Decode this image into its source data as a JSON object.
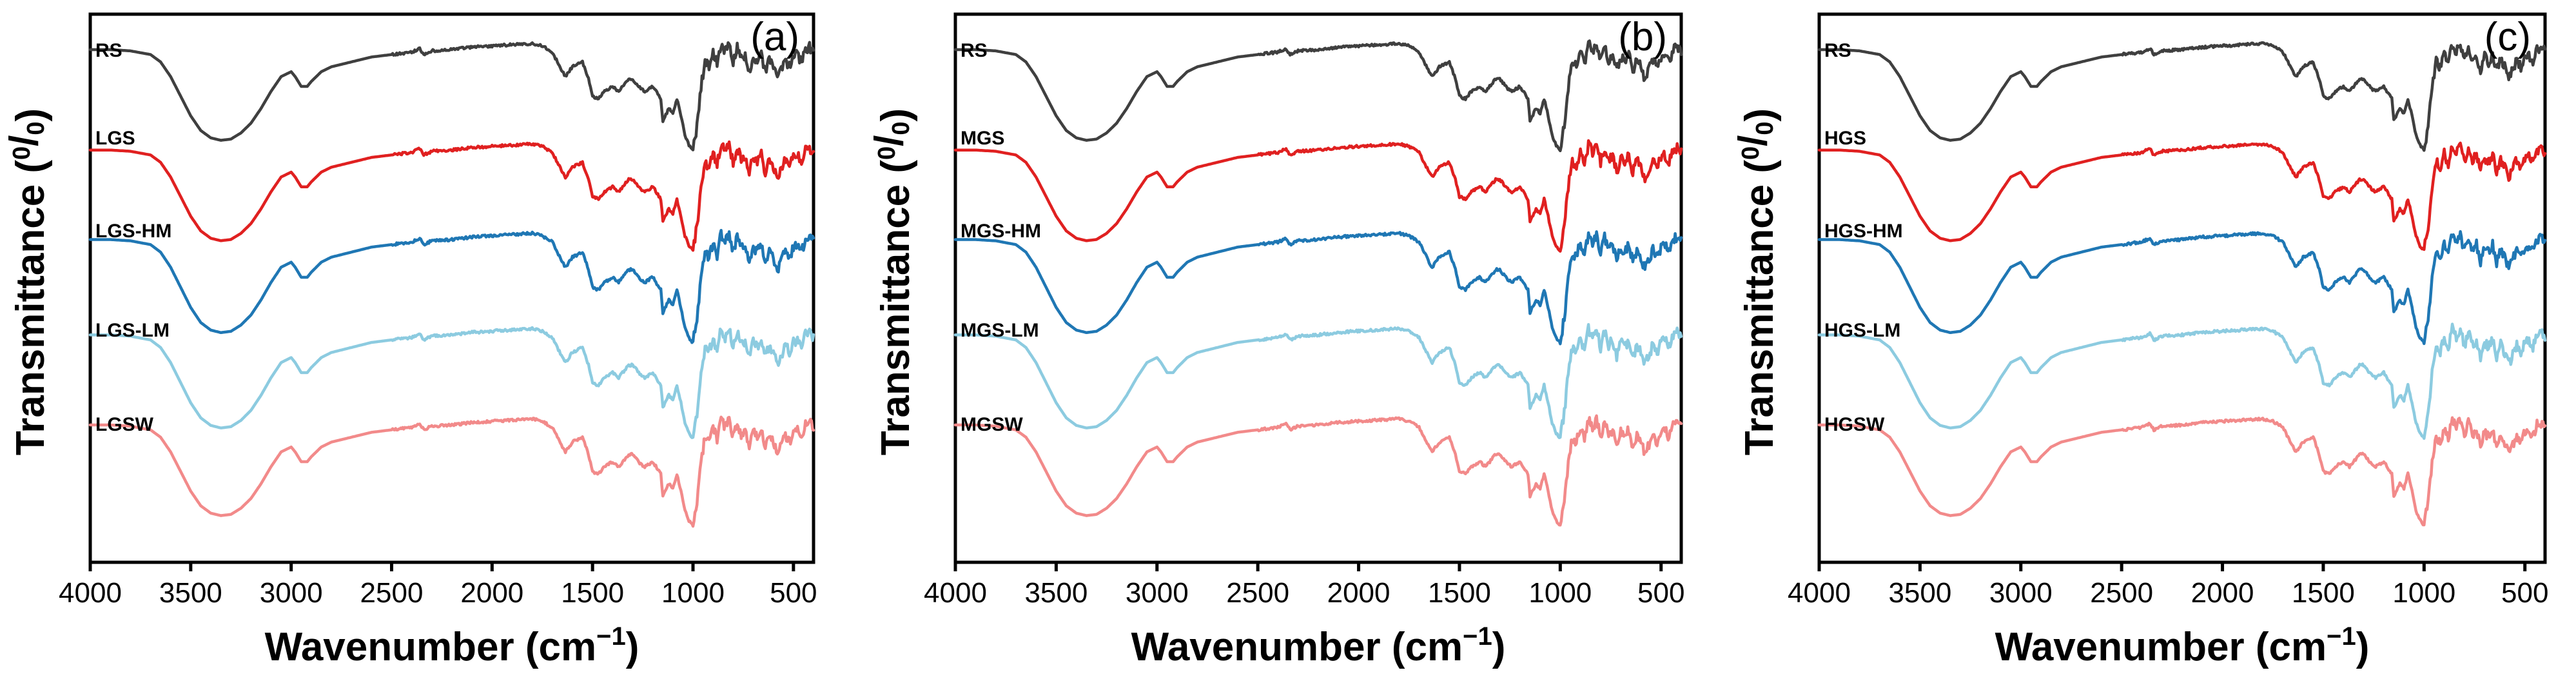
{
  "chart_data": [
    {
      "type": "line",
      "panel_label": "(a)",
      "xlabel_main": "Wavenumber (cm",
      "xlabel_sup": "−1",
      "xlabel_end": ")",
      "ylabel_main": "Transmittance (",
      "ylabel_sup": "0",
      "ylabel_slash": "/",
      "ylabel_sub": "0",
      "ylabel_end": ")",
      "xlim": [
        4000,
        400
      ],
      "x_ticks": [
        4000,
        3500,
        3000,
        2500,
        2000,
        1500,
        1000,
        500
      ],
      "x_tick_labels": [
        "4000",
        "3500",
        "3000",
        "2500",
        "2000",
        "1500",
        "1000",
        "500"
      ],
      "series_labels": [
        "RS",
        "LGS",
        "LGS-HM",
        "LGS-LM",
        "LGSW"
      ],
      "grid": false
    },
    {
      "type": "line",
      "panel_label": "(b)",
      "xlabel_main": "Wavenumber (cm",
      "xlabel_sup": "−1",
      "xlabel_end": ")",
      "ylabel_main": "Transmittance (",
      "ylabel_sup": "0",
      "ylabel_slash": "/",
      "ylabel_sub": "0",
      "ylabel_end": ")",
      "xlim": [
        4000,
        400
      ],
      "x_ticks": [
        4000,
        3500,
        3000,
        2500,
        2000,
        1500,
        1000,
        500
      ],
      "x_tick_labels": [
        "4000",
        "3500",
        "3000",
        "2500",
        "2000",
        "1500",
        "1000",
        "500"
      ],
      "series_labels": [
        "RS",
        "MGS",
        "MGS-HM",
        "MGS-LM",
        "MGSW"
      ],
      "grid": false
    },
    {
      "type": "line",
      "panel_label": "(c)",
      "xlabel_main": "Wavenumber (cm",
      "xlabel_sup": "−1",
      "xlabel_end": ")",
      "ylabel_main": "Transmittance (",
      "ylabel_sup": "0",
      "ylabel_slash": "/",
      "ylabel_sub": "0",
      "ylabel_end": ")",
      "xlim": [
        4000,
        400
      ],
      "x_ticks": [
        4000,
        3500,
        3000,
        2500,
        2000,
        1500,
        1000,
        500
      ],
      "x_tick_labels": [
        "4000",
        "3500",
        "3000",
        "2500",
        "2000",
        "1500",
        "1000",
        "500"
      ],
      "series_labels": [
        "RS",
        "HGS",
        "HGS-HM",
        "HGS-LM",
        "HGSW"
      ],
      "grid": false
    }
  ],
  "colors": [
    "#3f3f3f",
    "#e02020",
    "#1f77b4",
    "#8ccbe0",
    "#f28a8a"
  ],
  "spectrum_features": {
    "x": [
      4000,
      3900,
      3800,
      3700,
      3650,
      3600,
      3550,
      3500,
      3450,
      3400,
      3350,
      3300,
      3250,
      3200,
      3150,
      3100,
      3050,
      3000,
      2980,
      2950,
      2920,
      2900,
      2850,
      2800,
      2700,
      2600,
      2500,
      2400,
      2360,
      2340,
      2300,
      2200,
      2100,
      2000,
      1900,
      1800,
      1750,
      1700,
      1650,
      1635,
      1600,
      1550,
      1520,
      1500,
      1470,
      1440,
      1420,
      1400,
      1370,
      1340,
      1320,
      1300,
      1260,
      1240,
      1200,
      1160,
      1150,
      1120,
      1100,
      1080,
      1060,
      1040,
      1020,
      1000,
      980,
      960,
      940,
      920,
      900,
      880,
      860,
      840,
      820,
      800,
      780,
      760,
      740,
      720,
      700,
      680,
      660,
      640,
      620,
      600,
      580,
      560,
      540,
      520,
      500,
      480,
      460,
      440,
      420,
      400
    ],
    "y": [
      0.9,
      0.9,
      0.89,
      0.86,
      0.8,
      0.68,
      0.52,
      0.36,
      0.24,
      0.18,
      0.16,
      0.17,
      0.22,
      0.3,
      0.42,
      0.56,
      0.68,
      0.72,
      0.68,
      0.6,
      0.6,
      0.64,
      0.72,
      0.76,
      0.8,
      0.84,
      0.86,
      0.88,
      0.91,
      0.86,
      0.89,
      0.9,
      0.92,
      0.93,
      0.94,
      0.95,
      0.93,
      0.88,
      0.72,
      0.68,
      0.76,
      0.8,
      0.66,
      0.52,
      0.5,
      0.56,
      0.58,
      0.6,
      0.56,
      0.62,
      0.66,
      0.66,
      0.58,
      0.56,
      0.6,
      0.5,
      0.32,
      0.42,
      0.38,
      0.5,
      0.36,
      0.2,
      0.12,
      0.08,
      0.28,
      0.6,
      0.8,
      0.76,
      0.88,
      0.78,
      0.95,
      0.88,
      0.94,
      0.8,
      0.92,
      0.82,
      0.86,
      0.72,
      0.84,
      0.8,
      0.86,
      0.72,
      0.82,
      0.76,
      0.66,
      0.74,
      0.82,
      0.76,
      0.84,
      0.86,
      0.8,
      0.9,
      0.92,
      0.88
    ]
  }
}
